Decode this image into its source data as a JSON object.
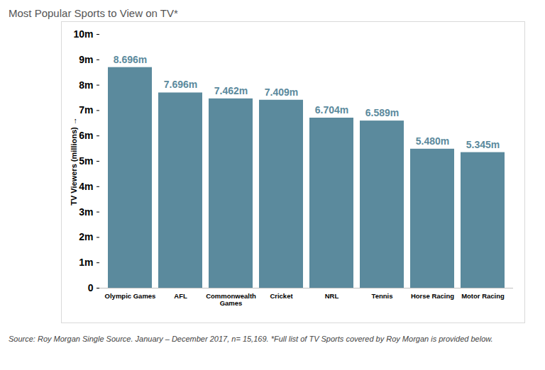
{
  "chart_data": {
    "type": "bar",
    "title": "Most Popular Sports to View on TV*",
    "caption": "Source: Roy Morgan Single Source. January – December 2017, n= 15,169. *Full list of TV Sports covered by Roy Morgan is provided below.",
    "y_label": "TV Viewers (millions)",
    "categories": [
      "Olympic Games",
      "AFL",
      "Commonwealth Games",
      "Cricket",
      "NRL",
      "Tennis",
      "Horse Racing",
      "Motor Racing"
    ],
    "values": [
      8.696,
      7.696,
      7.462,
      7.409,
      6.704,
      6.589,
      5.48,
      5.345
    ],
    "value_labels": [
      "8.696m",
      "7.696m",
      "7.462m",
      "7.409m",
      "6.704m",
      "6.589m",
      "5.480m",
      "5.345m"
    ],
    "data_labels": true,
    "color": "#5b8a9d",
    "ylim": [
      0,
      10
    ],
    "yticks": [
      0,
      {
        "value": 1,
        "label": "1m"
      },
      {
        "value": 2,
        "label": "2m"
      },
      {
        "value": 3,
        "label": "3m"
      },
      {
        "value": 4,
        "label": "4m"
      },
      {
        "value": 5,
        "label": "5m"
      },
      {
        "value": 6,
        "label": "6m"
      },
      {
        "value": 7,
        "label": "7m"
      },
      {
        "value": 8,
        "label": "8m"
      },
      {
        "value": 9,
        "label": "9m"
      },
      {
        "value": 10,
        "label": "10m"
      }
    ],
    "grid": false
  }
}
